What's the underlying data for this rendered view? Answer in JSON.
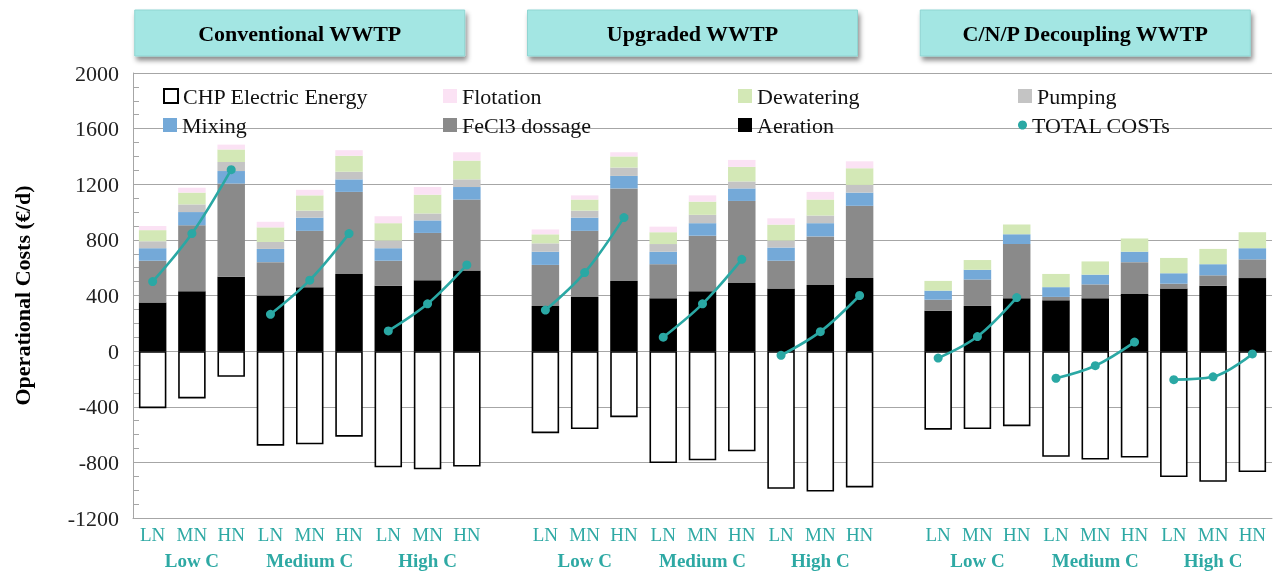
{
  "chart_data": {
    "type": "bar",
    "ylabel": "Operational Costs (€/d)",
    "categories": [
      "LN",
      "MN",
      "HN",
      "LN",
      "MN",
      "HN",
      "LN",
      "MN",
      "HN",
      null,
      "LN",
      "MN",
      "HN",
      "LN",
      "MN",
      "HN",
      "LN",
      "MN",
      "HN",
      null,
      "LN",
      "MN",
      "HN",
      "LN",
      "MN",
      "HN",
      "LN",
      "MN",
      "HN"
    ],
    "stacked": true,
    "series": [
      {
        "name": "CHP Electric Energy",
        "color": "#ffffff",
        "values": [
          -410,
          -340,
          -185,
          -680,
          -670,
          -615,
          -835,
          -850,
          -830,
          null,
          -590,
          -560,
          -475,
          -805,
          -785,
          -720,
          -990,
          -1010,
          -980,
          null,
          -565,
          -560,
          -540,
          -760,
          -780,
          -765,
          -905,
          -940,
          -870
        ]
      },
      {
        "name": "Aeration",
        "color": "#000000",
        "values": [
          350,
          430,
          535,
          400,
          460,
          555,
          470,
          510,
          580,
          null,
          325,
          390,
          505,
          380,
          430,
          490,
          450,
          475,
          525,
          null,
          290,
          325,
          380,
          365,
          380,
          410,
          450,
          470,
          525
        ]
      },
      {
        "name": "FeCl3 dossage",
        "color": "#8a8a8a",
        "values": [
          300,
          475,
          670,
          240,
          405,
          590,
          180,
          340,
          510,
          null,
          295,
          475,
          665,
          245,
          400,
          590,
          200,
          350,
          520,
          null,
          80,
          190,
          390,
          25,
          100,
          230,
          35,
          75,
          135
        ]
      },
      {
        "name": "Mixing",
        "color": "#74a9d8",
        "values": [
          90,
          95,
          90,
          95,
          95,
          90,
          90,
          90,
          90,
          null,
          95,
          95,
          90,
          90,
          90,
          90,
          95,
          95,
          95,
          null,
          65,
          70,
          70,
          70,
          70,
          75,
          75,
          80,
          80
        ]
      },
      {
        "name": "Pumping",
        "color": "#c4c4c4",
        "values": [
          50,
          55,
          65,
          50,
          50,
          55,
          55,
          50,
          55,
          null,
          60,
          50,
          60,
          55,
          60,
          50,
          50,
          55,
          55,
          null,
          null,
          null,
          null,
          null,
          null,
          null,
          null,
          null,
          null
        ]
      },
      {
        "name": "Dewatering",
        "color": "#d3e8b6",
        "values": [
          80,
          85,
          90,
          105,
          110,
          115,
          125,
          135,
          135,
          null,
          65,
          80,
          80,
          85,
          95,
          105,
          115,
          115,
          120,
          null,
          70,
          70,
          70,
          95,
          95,
          95,
          110,
          110,
          115
        ]
      },
      {
        "name": "Flotation",
        "color": "#fbe2f4",
        "values": [
          30,
          35,
          35,
          40,
          40,
          40,
          50,
          55,
          60,
          null,
          35,
          30,
          30,
          40,
          45,
          50,
          45,
          55,
          50,
          null,
          null,
          null,
          null,
          null,
          null,
          null,
          null,
          null,
          null
        ]
      },
      {
        "name": "TOTAL COSTs",
        "type": "line",
        "color": "#2aa8a4",
        "values": [
          500,
          845,
          1305,
          null,
          null,
          null,
          null,
          null,
          null,
          null,
          null,
          null,
          null,
          null,
          null,
          null,
          null,
          null,
          null,
          null,
          null,
          null,
          null,
          null,
          null,
          null,
          null,
          null,
          null
        ]
      },
      {
        "type": "line",
        "color": "#2aa8a4",
        "values": [
          null,
          null,
          null,
          265,
          510,
          845,
          null,
          null,
          null,
          null,
          null,
          null,
          null,
          null,
          null,
          null,
          null,
          null,
          null,
          null,
          null,
          null,
          null,
          null,
          null,
          null,
          null,
          null,
          null
        ]
      },
      {
        "type": "line",
        "color": "#2aa8a4",
        "values": [
          null,
          null,
          null,
          null,
          null,
          null,
          145,
          340,
          620,
          null,
          null,
          null,
          null,
          null,
          null,
          null,
          null,
          null,
          null,
          null,
          null,
          null,
          null,
          null,
          null,
          null,
          null,
          null,
          null
        ]
      },
      {
        "type": "line",
        "color": "#2aa8a4",
        "values": [
          null,
          null,
          null,
          null,
          null,
          null,
          null,
          null,
          null,
          null,
          295,
          565,
          960,
          null,
          null,
          null,
          null,
          null,
          null,
          null,
          null,
          null,
          null,
          null,
          null,
          null,
          null,
          null,
          null
        ]
      },
      {
        "type": "line",
        "color": "#2aa8a4",
        "values": [
          null,
          null,
          null,
          null,
          null,
          null,
          null,
          null,
          null,
          null,
          null,
          null,
          null,
          100,
          340,
          660,
          null,
          null,
          null,
          null,
          null,
          null,
          null,
          null,
          null,
          null,
          null,
          null,
          null
        ]
      },
      {
        "type": "line",
        "color": "#2aa8a4",
        "values": [
          null,
          null,
          null,
          null,
          null,
          null,
          null,
          null,
          null,
          null,
          null,
          null,
          null,
          null,
          null,
          null,
          -30,
          140,
          400,
          null,
          null,
          null,
          null,
          null,
          null,
          null,
          null,
          null,
          null
        ]
      },
      {
        "type": "line",
        "color": "#2aa8a4",
        "values": [
          null,
          null,
          null,
          null,
          null,
          null,
          null,
          null,
          null,
          null,
          null,
          null,
          null,
          null,
          null,
          null,
          null,
          null,
          null,
          null,
          -50,
          105,
          385,
          null,
          null,
          null,
          null,
          null,
          null
        ]
      },
      {
        "type": "line",
        "color": "#2aa8a4",
        "values": [
          null,
          null,
          null,
          null,
          null,
          null,
          null,
          null,
          null,
          null,
          null,
          null,
          null,
          null,
          null,
          null,
          null,
          null,
          null,
          null,
          null,
          null,
          null,
          -195,
          -105,
          65,
          null,
          null,
          null
        ]
      },
      {
        "type": "line",
        "color": "#2aa8a4",
        "values": [
          null,
          null,
          null,
          null,
          null,
          null,
          null,
          null,
          null,
          null,
          null,
          null,
          null,
          null,
          null,
          null,
          null,
          null,
          null,
          null,
          null,
          null,
          null,
          null,
          null,
          null,
          -205,
          -185,
          -20
        ]
      }
    ],
    "ylim": [
      -1200,
      2000
    ],
    "yticks": [
      -1200,
      {
        "value": -1100,
        "label": null
      },
      {
        "value": -1000,
        "label": null
      },
      {
        "value": -900,
        "label": null
      },
      -800,
      {
        "value": -700,
        "label": null
      },
      {
        "value": -600,
        "label": null
      },
      {
        "value": -500,
        "label": null
      },
      -400,
      {
        "value": -300,
        "label": null
      },
      {
        "value": -200,
        "label": null
      },
      {
        "value": -100,
        "label": null
      },
      0,
      {
        "value": 100,
        "label": null
      },
      {
        "value": 200,
        "label": null
      },
      {
        "value": 300,
        "label": null
      },
      400,
      {
        "value": 500,
        "label": null
      },
      {
        "value": 600,
        "label": null
      },
      {
        "value": 700,
        "label": null
      },
      800,
      {
        "value": 900,
        "label": null
      },
      {
        "value": 1000,
        "label": null
      },
      {
        "value": 1100,
        "label": null
      },
      1200,
      {
        "value": 1300,
        "label": null
      },
      {
        "value": 1400,
        "label": null
      },
      {
        "value": 1500,
        "label": null
      },
      1600,
      {
        "value": 1700,
        "label": null
      },
      {
        "value": 1800,
        "label": null
      },
      {
        "value": 1900,
        "label": null
      },
      2000
    ],
    "grid": "y",
    "legend": "top",
    "marker": "circle",
    "line_style": "solid",
    "annotations": [
      "Conventional WWTP",
      "Upgraded WWTP",
      "C/N/P Decoupling WWTP",
      "Low C",
      "Medium C",
      "High C",
      "Low C",
      "Medium C",
      "High C",
      "Low C",
      "Medium C",
      "High C"
    ]
  }
}
